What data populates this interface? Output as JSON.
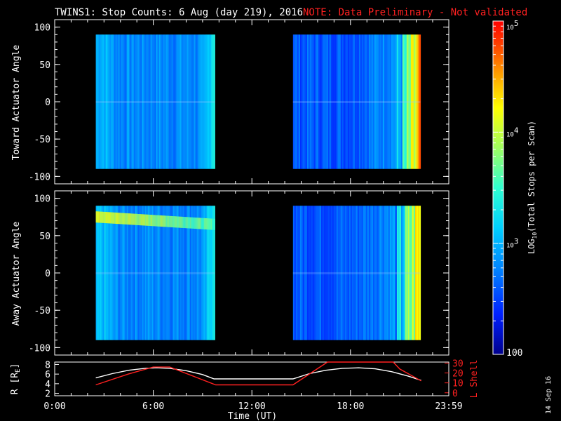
{
  "header": {
    "title": "TWINS1: Stop Counts:  6 Aug (day 219), 2016",
    "note": "NOTE: Data Preliminary - Not validated"
  },
  "footer": {
    "stamp": "14 Sep 16"
  },
  "chart_data": [
    {
      "type": "heatmap",
      "ylabel": "Toward Actuator Angle",
      "xlim": [
        "0:00",
        "23:59"
      ],
      "ylim": [
        -110,
        110
      ],
      "yticks": [
        100,
        50,
        0,
        -50,
        -100
      ],
      "angle_range": [
        -90,
        90
      ],
      "data_blocks": [
        {
          "start": "2:30",
          "end": "9:45"
        },
        {
          "start": "14:30",
          "end": "22:15"
        }
      ],
      "grid": false
    },
    {
      "type": "heatmap",
      "ylabel": "Away Actuator Angle",
      "xlim": [
        "0:00",
        "23:59"
      ],
      "ylim": [
        -110,
        110
      ],
      "yticks": [
        100,
        50,
        0,
        -50,
        -100
      ],
      "angle_range": [
        -90,
        90
      ],
      "data_blocks": [
        {
          "start": "2:30",
          "end": "9:45"
        },
        {
          "start": "14:30",
          "end": "22:15"
        }
      ],
      "grid": false
    },
    {
      "type": "line",
      "xlabel": "Time (UT)",
      "xticks": [
        "0:00",
        "6:00",
        "12:00",
        "18:00",
        "23:59"
      ],
      "ylabel_left": "R [RE]",
      "ylabel_left_main": "R [R",
      "ylabel_left_sub": "E",
      "ylabel_left_close": "]",
      "yticks_left": [
        8,
        6,
        4,
        2
      ],
      "ylim_left": [
        1.5,
        8.5
      ],
      "ylabel_right": "L Shell",
      "yticks_right": [
        30,
        20,
        10,
        0
      ],
      "ylim_right": [
        -3,
        31
      ],
      "series": [
        {
          "color": "#ffffff",
          "axis": "left",
          "x": [
            2.5,
            3.5,
            4.5,
            5.5,
            6.2,
            7.0,
            8.0,
            9.0,
            9.7,
            10.5,
            12,
            13.5,
            14.5,
            15.5,
            16.5,
            17.5,
            18.5,
            19.5,
            20.5,
            21.5,
            22.3
          ],
          "y": [
            5.2,
            6.1,
            6.8,
            7.2,
            7.3,
            7.2,
            6.7,
            5.9,
            5.0,
            5.0,
            5.0,
            5.0,
            5.0,
            6.1,
            6.8,
            7.2,
            7.3,
            7.1,
            6.5,
            5.6,
            4.7
          ]
        },
        {
          "color": "#ff2020",
          "axis": "right",
          "x": [
            2.5,
            4.5,
            6.0,
            7.0,
            9.8,
            12,
            14.5,
            16.6,
            16.65,
            20.6,
            21.0,
            22.3
          ],
          "y": [
            8,
            19,
            26,
            26,
            8,
            8,
            8,
            31,
            31,
            31,
            24,
            12
          ]
        }
      ]
    }
  ],
  "colorbar": {
    "label": "LOG",
    "label_sub": "10",
    "label_rest": "(Total Stops per Scan)",
    "ticks": [
      {
        "label": "10",
        "exp": "5",
        "value": 100000
      },
      {
        "label": "10",
        "exp": "4",
        "value": 10000
      },
      {
        "label": "10",
        "exp": "3",
        "value": 1000
      },
      {
        "label": "100",
        "exp": "",
        "value": 100
      }
    ],
    "range": [
      100,
      100000
    ],
    "colors": [
      "#00008c",
      "#0020ff",
      "#0080ff",
      "#00d0ff",
      "#30ffd0",
      "#a0ff60",
      "#ffff00",
      "#ffa000",
      "#ff4000",
      "#ff0000"
    ]
  },
  "colors": {
    "note": "#ff2020",
    "axes": "#ffffff",
    "background": "#000000"
  }
}
